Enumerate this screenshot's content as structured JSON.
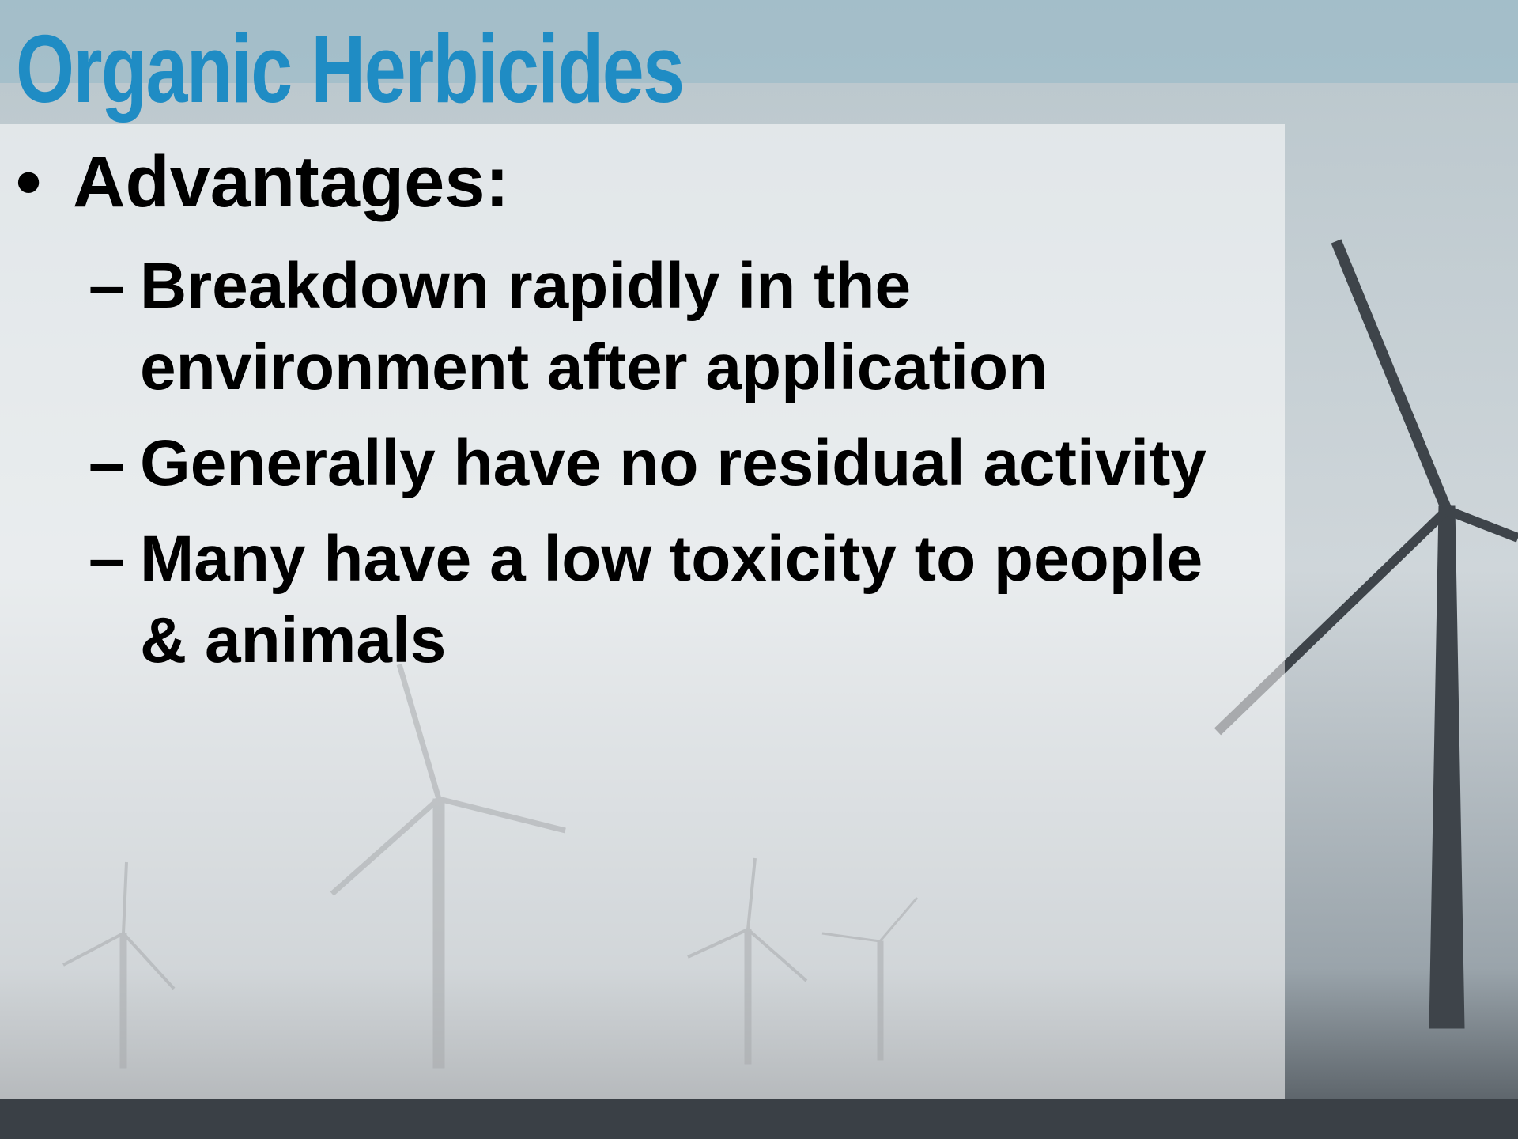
{
  "header": {
    "title": "Organic Herbicides"
  },
  "bullets": [
    {
      "heading": "Advantages:",
      "items": [
        "Breakdown rapidly in the environment after application",
        "Generally have no residual activity",
        "Many have a low toxicity to people & animals"
      ]
    }
  ]
}
